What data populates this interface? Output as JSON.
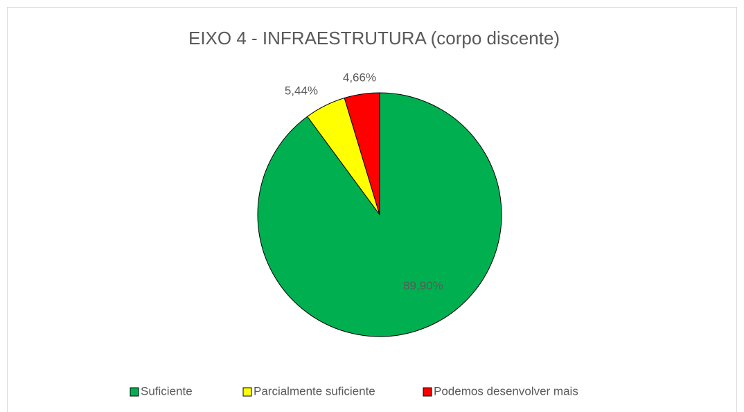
{
  "chart_data": {
    "type": "pie",
    "title": "EIXO 4 - INFRAESTRUTURA (corpo discente)",
    "categories": [
      "Suficiente",
      "Parcialmente suficiente",
      "Podemos desenvolver mais"
    ],
    "values": [
      89.9,
      5.44,
      4.66
    ],
    "value_labels": [
      "89,90%",
      "5,44%",
      "4,66%"
    ],
    "colors": [
      "#00b050",
      "#ffff00",
      "#ff0000"
    ],
    "legend": "bottom"
  }
}
